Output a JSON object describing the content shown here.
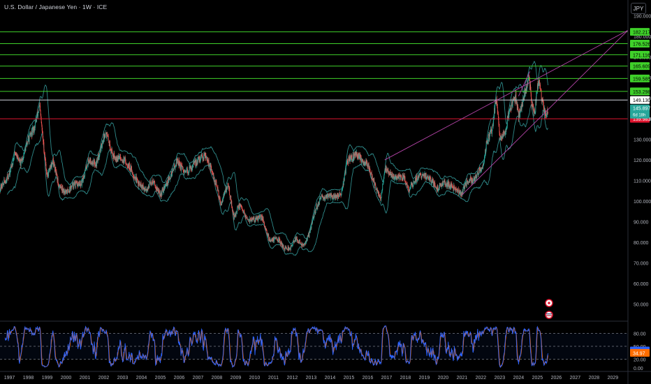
{
  "header": {
    "title": "U.S. Dollar / Japanese Yen · 1W · ICE",
    "currency_button": "JPY"
  },
  "colors": {
    "background": "#000000",
    "up": "#26a69a",
    "down": "#ef5350",
    "band": "#2e8a8a",
    "level": "#3fd12a",
    "current": "#d1d4dc",
    "support": "#e0152f",
    "wedge": "#b544a8",
    "stoch_k": "#2962ff",
    "stoch_d": "#ff6d00"
  },
  "chart_data": {
    "type": "candlestick",
    "x_range": [
      1996.5,
      2029.8
    ],
    "x_ticks": [
      "1997",
      "1998",
      "1999",
      "2000",
      "2001",
      "2002",
      "2003",
      "2004",
      "2005",
      "2006",
      "2007",
      "2008",
      "2009",
      "2010",
      "2011",
      "2012",
      "2013",
      "2014",
      "2015",
      "2016",
      "2017",
      "2018",
      "2019",
      "2020",
      "2021",
      "2022",
      "2023",
      "2024",
      "2025",
      "2026",
      "2027",
      "2028",
      "2029"
    ],
    "y_range": [
      43,
      195
    ],
    "y_ticks": [
      "190.000",
      "180.000",
      "170.000",
      "160.000",
      "150.000",
      "140.000",
      "130.000",
      "120.000",
      "110.000",
      "100.000",
      "90.000",
      "80.000",
      "70.000",
      "60.000",
      "50.000"
    ],
    "price_path": [
      [
        1996.5,
        106
      ],
      [
        1997.0,
        113
      ],
      [
        1997.3,
        124
      ],
      [
        1997.6,
        118
      ],
      [
        1998.0,
        130
      ],
      [
        1998.3,
        135
      ],
      [
        1998.6,
        146
      ],
      [
        1998.8,
        128
      ],
      [
        1999.0,
        112
      ],
      [
        1999.3,
        120
      ],
      [
        1999.6,
        108
      ],
      [
        2000.0,
        104
      ],
      [
        2000.4,
        108
      ],
      [
        2000.8,
        108
      ],
      [
        2001.2,
        120
      ],
      [
        2001.6,
        118
      ],
      [
        2002.1,
        134
      ],
      [
        2002.5,
        122
      ],
      [
        2002.9,
        121
      ],
      [
        2003.3,
        118
      ],
      [
        2003.8,
        109
      ],
      [
        2004.2,
        105
      ],
      [
        2004.6,
        110
      ],
      [
        2005.0,
        103
      ],
      [
        2005.5,
        111
      ],
      [
        2005.9,
        120
      ],
      [
        2006.3,
        113
      ],
      [
        2006.8,
        118
      ],
      [
        2007.4,
        123
      ],
      [
        2007.7,
        115
      ],
      [
        2008.0,
        107
      ],
      [
        2008.2,
        99
      ],
      [
        2008.6,
        108
      ],
      [
        2008.9,
        92
      ],
      [
        2009.2,
        98
      ],
      [
        2009.6,
        91
      ],
      [
        2010.0,
        91
      ],
      [
        2010.4,
        92
      ],
      [
        2010.8,
        81
      ],
      [
        2011.2,
        82
      ],
      [
        2011.6,
        77
      ],
      [
        2011.9,
        77
      ],
      [
        2012.2,
        82
      ],
      [
        2012.6,
        78
      ],
      [
        2012.9,
        84
      ],
      [
        2013.2,
        95
      ],
      [
        2013.5,
        101
      ],
      [
        2013.9,
        103
      ],
      [
        2014.2,
        102
      ],
      [
        2014.6,
        103
      ],
      [
        2014.9,
        119
      ],
      [
        2015.4,
        123
      ],
      [
        2015.7,
        120
      ],
      [
        2016.0,
        118
      ],
      [
        2016.4,
        107
      ],
      [
        2016.7,
        101
      ],
      [
        2016.9,
        116
      ],
      [
        2017.2,
        113
      ],
      [
        2017.6,
        111
      ],
      [
        2017.9,
        112
      ],
      [
        2018.2,
        106
      ],
      [
        2018.6,
        111
      ],
      [
        2018.9,
        113
      ],
      [
        2019.3,
        111
      ],
      [
        2019.7,
        106
      ],
      [
        2020.0,
        109
      ],
      [
        2020.3,
        108
      ],
      [
        2020.6,
        106
      ],
      [
        2021.0,
        104
      ],
      [
        2021.3,
        110
      ],
      [
        2021.6,
        110
      ],
      [
        2021.9,
        114
      ],
      [
        2022.1,
        116
      ],
      [
        2022.3,
        128
      ],
      [
        2022.6,
        135
      ],
      [
        2022.8,
        150
      ],
      [
        2022.95,
        138
      ],
      [
        2023.0,
        130
      ],
      [
        2023.3,
        134
      ],
      [
        2023.5,
        144
      ],
      [
        2023.7,
        148
      ],
      [
        2023.85,
        151
      ],
      [
        2024.0,
        141
      ],
      [
        2024.3,
        151
      ],
      [
        2024.5,
        158
      ],
      [
        2024.55,
        161
      ],
      [
        2024.7,
        146
      ],
      [
        2024.85,
        142
      ],
      [
        2025.0,
        156
      ],
      [
        2025.1,
        157
      ],
      [
        2025.3,
        146
      ],
      [
        2025.45,
        142
      ],
      [
        2025.55,
        145
      ]
    ],
    "price_levels": [
      {
        "value": 182.217,
        "label": "182.217",
        "kind": "resistance"
      },
      {
        "value": 176.526,
        "label": "176.526",
        "kind": "resistance"
      },
      {
        "value": 171.116,
        "label": "171.116",
        "kind": "resistance"
      },
      {
        "value": 165.609,
        "label": "165.609",
        "kind": "resistance"
      },
      {
        "value": 159.585,
        "label": "159.585",
        "kind": "resistance"
      },
      {
        "value": 153.298,
        "label": "153.298",
        "kind": "resistance"
      },
      {
        "value": 149.13,
        "label": "149.130",
        "kind": "current"
      },
      {
        "value": 139.983,
        "label": "139.983",
        "kind": "support"
      }
    ],
    "last_price": {
      "value": 145.897,
      "label": "145.897",
      "countdown": "6d 18h"
    },
    "trendlines": [
      {
        "from": [
          2016.9,
          120
        ],
        "to": [
          2029.8,
          183
        ]
      },
      {
        "from": [
          2021.0,
          103
        ],
        "to": [
          2029.8,
          183
        ]
      },
      {
        "from": [
          2024.0,
          151
        ],
        "to": [
          2024.6,
          163
        ]
      }
    ],
    "stochastic": {
      "y_range": [
        0,
        100
      ],
      "ticks": [
        "80.00",
        "50.00",
        "20.00",
        "0.00"
      ],
      "bands": [
        80,
        50,
        20
      ],
      "k_value": 40.31,
      "k_label": "40.31",
      "d_value": 34.97,
      "d_label": "34.97"
    }
  }
}
